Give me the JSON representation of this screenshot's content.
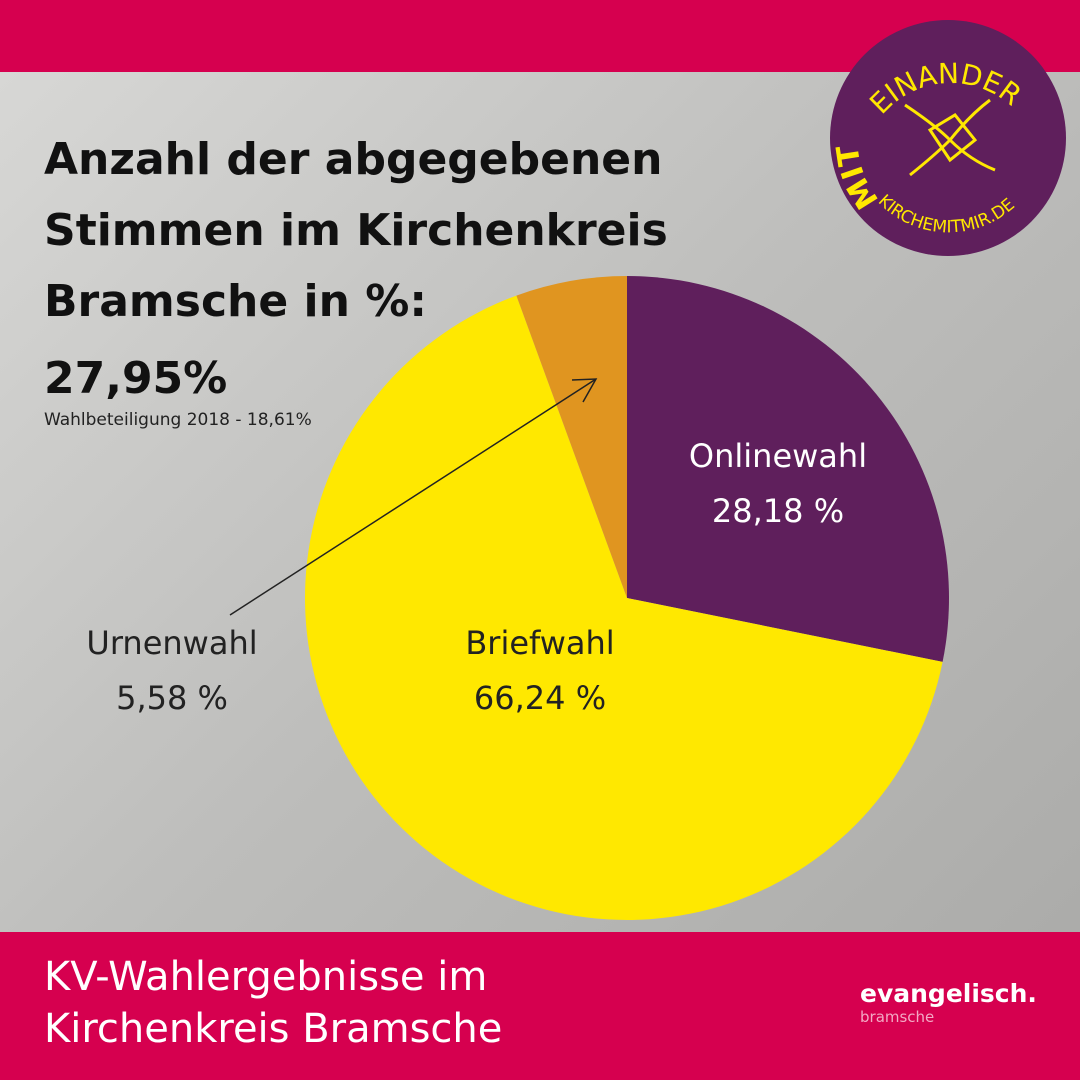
{
  "header": {
    "title_lines": [
      "Anzahl der abgegebenen",
      "Stimmen im Kirchenkreis",
      "Bramsche in %:"
    ],
    "turnout": "27,95%",
    "note": "Wahlbeteiligung 2018 - 18,61%"
  },
  "logo": {
    "mit": "MIT",
    "einander": "EINANDER",
    "url": "KIRCHEMITMIR.DE"
  },
  "chart_data": {
    "type": "pie",
    "categories": [
      "Onlinewahl",
      "Briefwahl",
      "Urnenwahl"
    ],
    "values": [
      28.18,
      66.24,
      5.58
    ],
    "value_labels": [
      "28,18 %",
      "66,24 %",
      "5,58 %"
    ],
    "colors": [
      "#5f1f5c",
      "#ffe800",
      "#e09520"
    ]
  },
  "footer": {
    "title_lines": [
      "KV-Wahlergebnisse im",
      "Kirchenkreis Bramsche"
    ],
    "brand": "evangelisch.",
    "brand_sub": "bramsche"
  }
}
